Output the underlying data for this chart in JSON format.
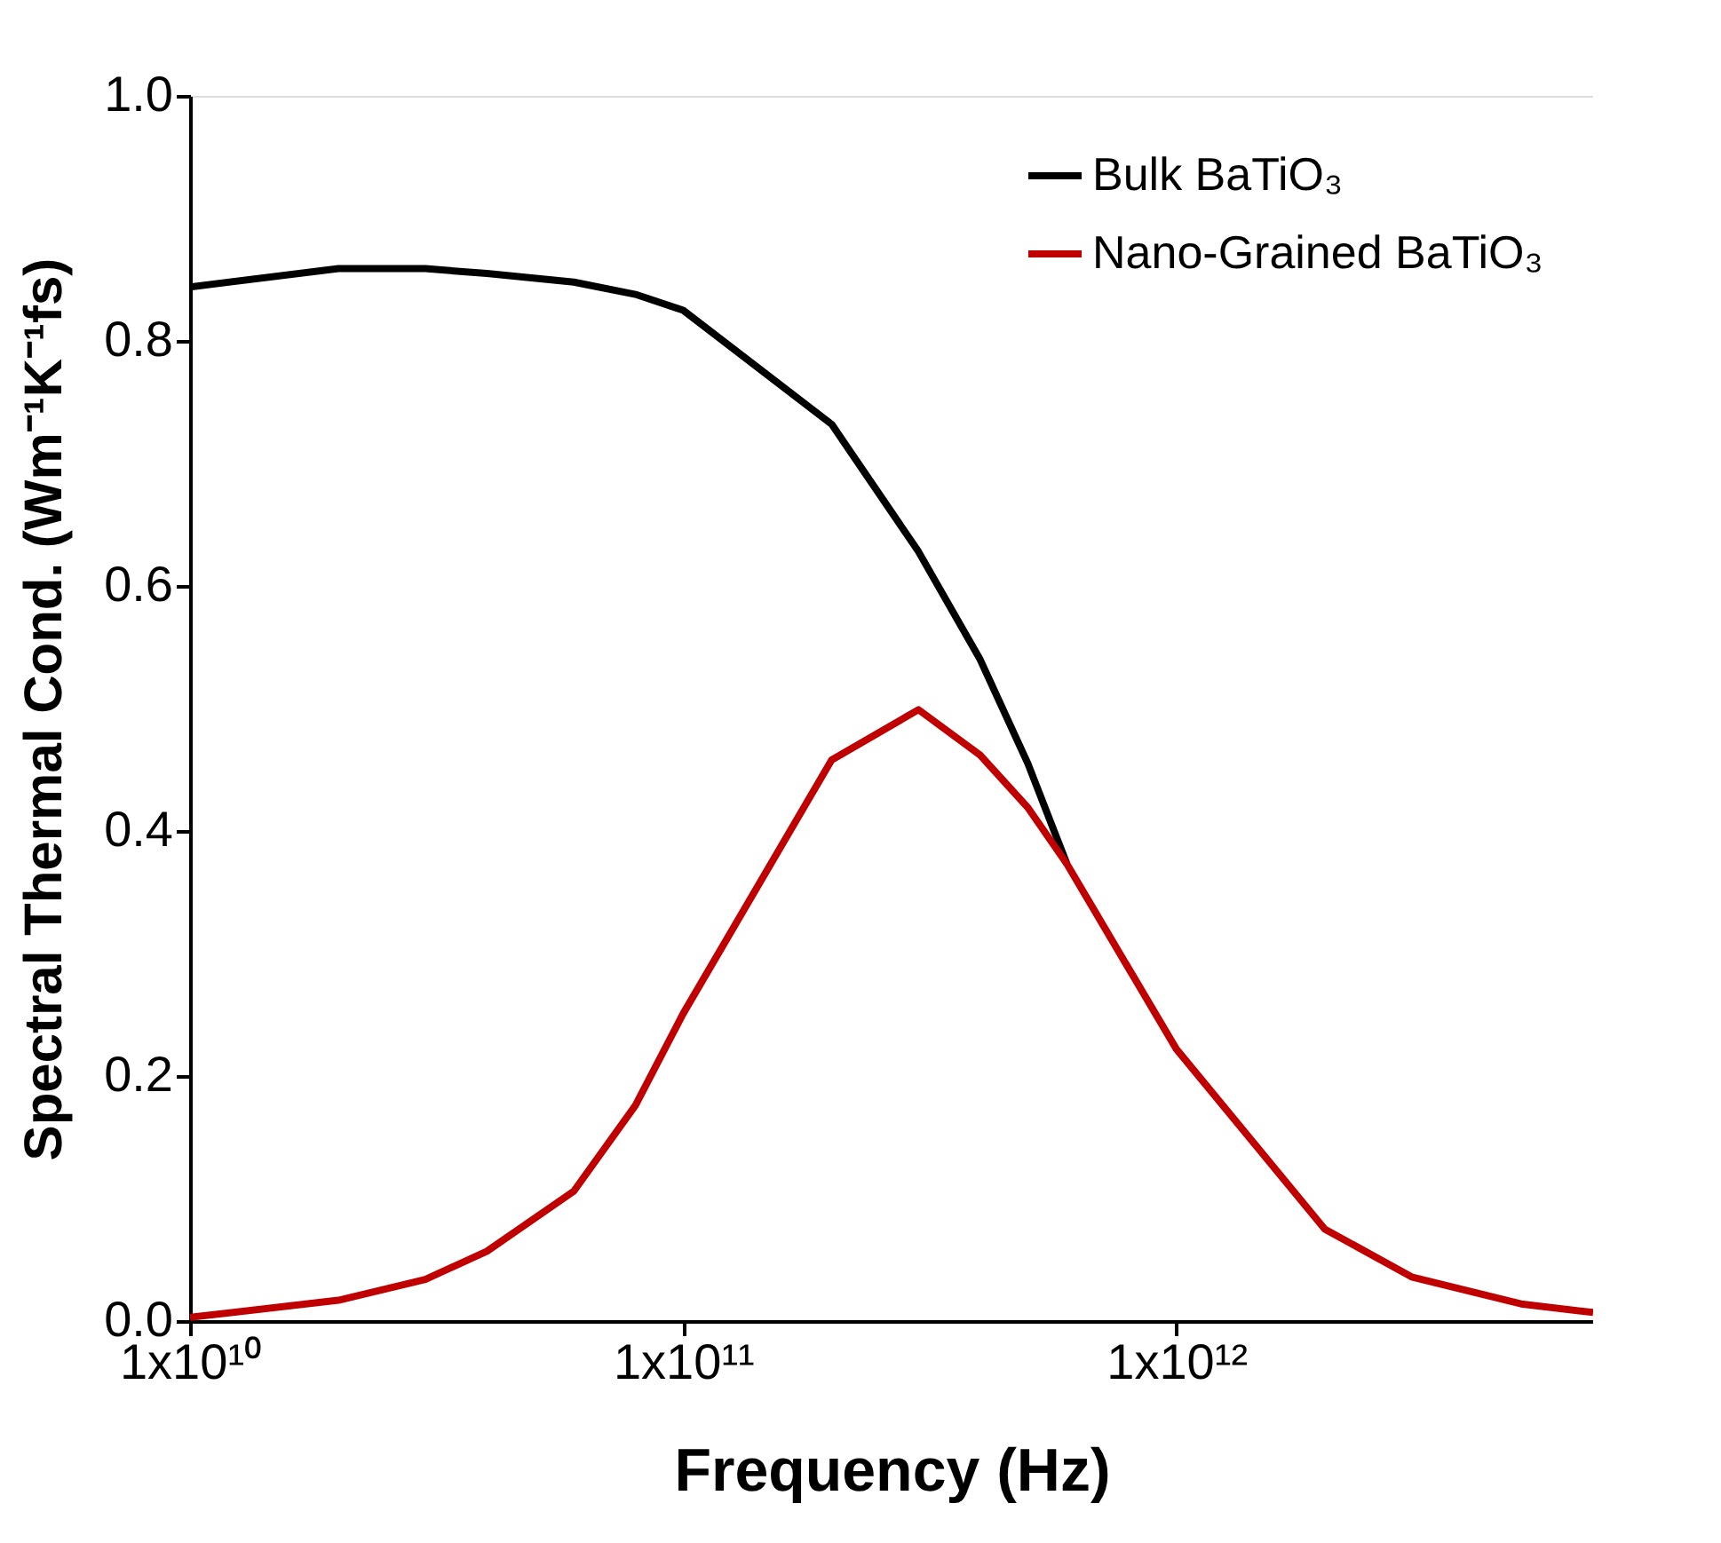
{
  "chart_data": {
    "type": "line",
    "xlabel": "Frequency (Hz)",
    "ylabel": "Spectral Thermal Cond. (Wm⁻¹K⁻¹fs)",
    "log": "x",
    "xlim": [
      10000000000.0,
      7000000000000.0
    ],
    "xticks": [
      {
        "value": 10000000000.0,
        "label": "1x10¹⁰"
      },
      {
        "value": 100000000000.0,
        "label": "1x10¹¹"
      },
      {
        "value": 1000000000000.0,
        "label": "1x10¹²"
      }
    ],
    "ylim": [
      0,
      1.0
    ],
    "yticks": [
      {
        "value": 0,
        "label": "0.0"
      },
      {
        "value": 0.2,
        "label": "0.2"
      },
      {
        "value": 0.4,
        "label": "0.4"
      },
      {
        "value": 0.6,
        "label": "0.6"
      },
      {
        "value": 0.8,
        "label": "0.8"
      },
      {
        "value": 1.0,
        "label": "1.0"
      }
    ],
    "grid": false,
    "legend": "top right",
    "marker": "none",
    "line_style": "solid",
    "series": [
      {
        "name": "Bulk BaTiO₃",
        "color": "#000000",
        "x": [
          10000000000.0,
          20000000000.0,
          30000000000.0,
          40000000000.0,
          60000000000.0,
          80000000000.0,
          100000000000.0,
          200000000000.0,
          300000000000.0,
          400000000000.0,
          500000000000.0,
          600000000000.0
        ],
        "values": [
          0.844,
          0.859,
          0.859,
          0.855,
          0.848,
          0.838,
          0.825,
          0.732,
          0.628,
          0.54,
          0.455,
          0.373
        ]
      },
      {
        "name": "Nano-Grained BaTiO₃",
        "color": "#c00000",
        "x": [
          10000000000.0,
          20000000000.0,
          30000000000.0,
          40000000000.0,
          60000000000.0,
          80000000000.0,
          100000000000.0,
          200000000000.0,
          300000000000.0,
          400000000000.0,
          500000000000.0,
          600000000000.0,
          1000000000000.0,
          2000000000000.0,
          3000000000000.0,
          5000000000000.0,
          7000000000000.0
        ],
        "values": [
          0.003,
          0.017,
          0.034,
          0.057,
          0.106,
          0.176,
          0.251,
          0.458,
          0.499,
          0.462,
          0.419,
          0.373,
          0.222,
          0.075,
          0.036,
          0.014,
          0.007
        ]
      }
    ]
  }
}
